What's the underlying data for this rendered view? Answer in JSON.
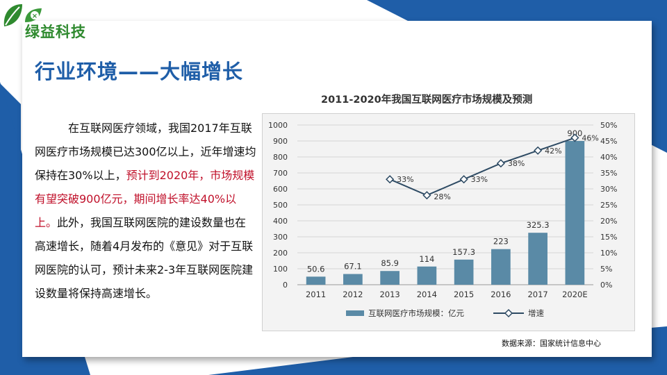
{
  "brand": {
    "name": "绿益科技"
  },
  "page": {
    "title": "行业环境——大幅增长"
  },
  "body": {
    "lead": "在互联网医疗领域，我国2017年互联网医疗市场规模已达300亿以上，近年增速均保持在30%以上，",
    "highlight": "预计到2020年，市场规模有望突破900亿元，期间增长率达40%以上。",
    "tail": "此外，我国互联网医院的建设数量也在高速增长，随着4月发布的《意见》对于互联网医院的认可，预计未来2-3年互联网医院建设数量将保持高速增长。"
  },
  "source": "数据来源：国家统计信息中心",
  "colors": {
    "title": "#1f5ea8",
    "brand": "#2f8a2f",
    "highlight": "#c0102a",
    "bar": "#5a8aa6",
    "line": "#2d4a63",
    "corner": "#1f5ea8"
  },
  "icons": {
    "logo": "leaf-logo-icon"
  },
  "chart_data": {
    "type": "bar",
    "title": "2011-2020年我国互联网医疗市场规模及预测",
    "categories": [
      "2011",
      "2012",
      "2013",
      "2014",
      "2015",
      "2016",
      "2017",
      "2020E"
    ],
    "ylim": [
      0,
      1000
    ],
    "y_ticks": [
      "0",
      "100",
      "200",
      "300",
      "400",
      "500",
      "600",
      "700",
      "800",
      "900",
      "1000"
    ],
    "y2lim": [
      0,
      50
    ],
    "y2_ticks": [
      "0%",
      "5%",
      "10%",
      "15%",
      "20%",
      "25%",
      "30%",
      "35%",
      "40%",
      "45%",
      "50%"
    ],
    "grid": true,
    "legend_position": "bottom",
    "series": [
      {
        "name": "互联网医疗市场规模：亿元",
        "kind": "bar",
        "axis": "left",
        "values": [
          50.6,
          67.1,
          85.9,
          114,
          157.3,
          223,
          325.3,
          900
        ],
        "labels": [
          "50.6",
          "67.1",
          "85.9",
          "114",
          "157.3",
          "223",
          "325.3",
          "900"
        ]
      },
      {
        "name": "增速",
        "kind": "line",
        "axis": "right",
        "values": [
          null,
          null,
          33,
          28,
          33,
          38,
          42,
          46
        ],
        "labels": [
          "",
          "",
          "33%",
          "28%",
          "33%",
          "38%",
          "42%",
          "46%"
        ]
      }
    ]
  }
}
